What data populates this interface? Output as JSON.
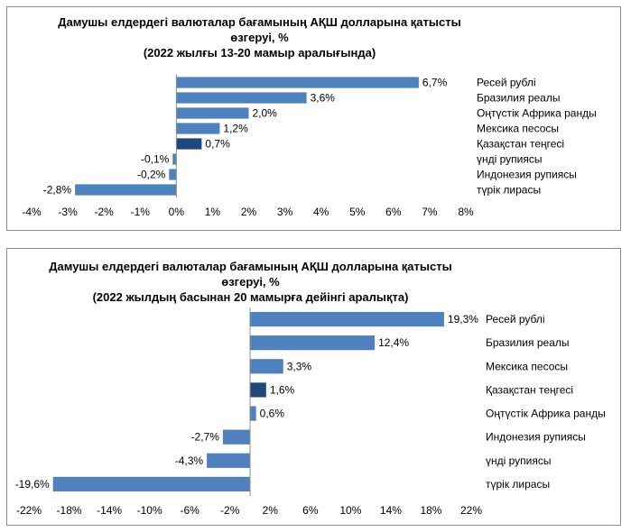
{
  "chart_data": [
    {
      "type": "bar",
      "orientation": "horizontal",
      "title": [
        "Дамушы елдердегі валюталар бағамының АҚШ долларына қатысты",
        "өзгеруі, %",
        "(2022 жылғы 13-20 мамыр аралығында)"
      ],
      "categories": [
        "Ресей рублі",
        "Бразилия реалы",
        "Оңтүстік Африка ранды",
        "Мексика песосы",
        "Қазақстан теңгесі",
        "үнді рупиясы",
        "Индонезия рупиясы",
        "түрік лирасы"
      ],
      "values": [
        6.7,
        3.6,
        2.0,
        1.2,
        0.7,
        -0.1,
        -0.2,
        -2.8
      ],
      "value_labels": [
        "6,7%",
        "3,6%",
        "2,0%",
        "1,2%",
        "0,7%",
        "-0,1%",
        "-0,2%",
        "-2,8%"
      ],
      "highlight": "Қазақстан теңгесі",
      "xlim": [
        -4,
        8
      ],
      "ticks": [
        -4,
        -3,
        -2,
        -1,
        0,
        1,
        2,
        3,
        4,
        5,
        6,
        7,
        8
      ],
      "tick_labels": [
        "-4%",
        "-3%",
        "-2%",
        "-1%",
        "0%",
        "1%",
        "2%",
        "3%",
        "4%",
        "5%",
        "6%",
        "7%",
        "8%"
      ],
      "legend": "none",
      "grid": false,
      "colors": {
        "bar": "#4f81bd",
        "highlight": "#1f497d"
      }
    },
    {
      "type": "bar",
      "orientation": "horizontal",
      "title": [
        "Дамушы елдердегі валюталар бағамының АҚШ долларына қатысты",
        "өзгеруі, %",
        "(2022 жылдың басынан 20 мамырға дейінгі аралықта)"
      ],
      "categories": [
        "Ресей рублі",
        "Бразилия реалы",
        "Мексика песосы",
        "Қазақстан теңгесі",
        "Оңтүстік Африка ранды",
        "Индонезия рупиясы",
        "үнді рупиясы",
        "түрік лирасы"
      ],
      "values": [
        19.3,
        12.4,
        3.3,
        1.6,
        0.6,
        -2.7,
        -4.3,
        -19.6
      ],
      "value_labels": [
        "19,3%",
        "12,4%",
        "3,3%",
        "1,6%",
        "0,6%",
        "-2,7%",
        "-4,3%",
        "-19,6%"
      ],
      "highlight": "Қазақстан теңгесі",
      "xlim": [
        -22,
        22
      ],
      "ticks": [
        -22,
        -18,
        -14,
        -10,
        -6,
        -2,
        2,
        6,
        10,
        14,
        18,
        22
      ],
      "tick_labels": [
        "-22%",
        "-18%",
        "-14%",
        "-10%",
        "-6%",
        "-2%",
        "2%",
        "6%",
        "10%",
        "14%",
        "18%",
        "22%"
      ],
      "legend": "none",
      "grid": false,
      "colors": {
        "bar": "#4f81bd",
        "highlight": "#1f497d"
      }
    }
  ]
}
